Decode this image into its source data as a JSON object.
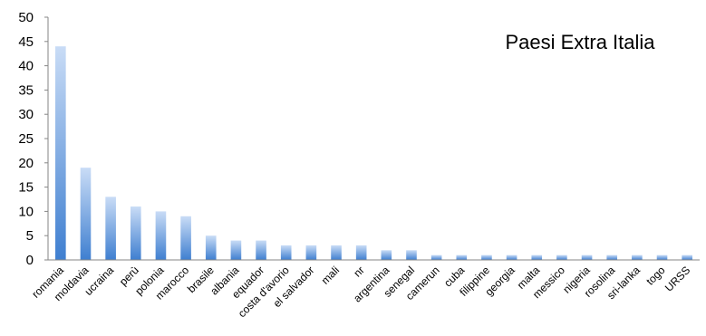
{
  "chart_data": {
    "type": "bar",
    "title": "Paesi Extra Italia",
    "xlabel": "",
    "ylabel": "",
    "ylim": [
      0,
      50
    ],
    "yticks": [
      0,
      5,
      10,
      15,
      20,
      25,
      30,
      35,
      40,
      45,
      50
    ],
    "grid": false,
    "legend": "none",
    "bar_color_top": "#c9dcf6",
    "bar_color_bottom": "#3f7fd0",
    "categories": [
      "romania",
      "moldavia",
      "ucraina",
      "perù",
      "polonia",
      "marocco",
      "brasile",
      "albania",
      "equador",
      "costa d'avorio",
      "el salvador",
      "mali",
      "nr",
      "argentina",
      "senegal",
      "camerun",
      "cuba",
      "filippine",
      "georgia",
      "malta",
      "messico",
      "nigeria",
      "rosolina",
      "sri-lanka",
      "togo",
      "URSS"
    ],
    "values": [
      44,
      19,
      13,
      11,
      10,
      9,
      5,
      4,
      4,
      3,
      3,
      3,
      3,
      2,
      2,
      1,
      1,
      1,
      1,
      1,
      1,
      1,
      1,
      1,
      1,
      1
    ]
  }
}
